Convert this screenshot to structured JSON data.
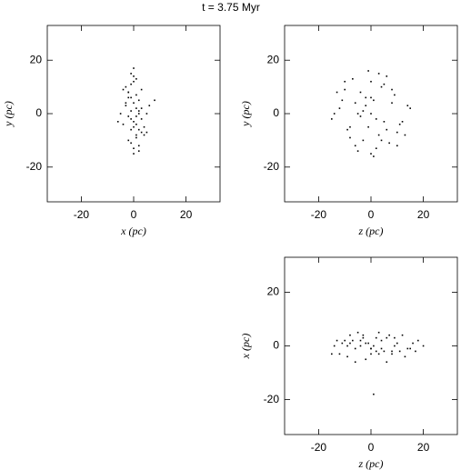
{
  "title": "t = 3.75 Myr",
  "chart_data": [
    {
      "type": "scatter",
      "xlabel": "x  (pc)",
      "ylabel": "y  (pc)",
      "color": "#000000",
      "xlim": [
        -33,
        33
      ],
      "ylim": [
        -33,
        33
      ],
      "xticks": [
        -20,
        0,
        20
      ],
      "yticks": [
        -20,
        0,
        20
      ],
      "x": [
        -3,
        -2,
        -1,
        0,
        1,
        2,
        3,
        -4,
        -1,
        1,
        0,
        2,
        -2,
        4,
        5,
        -3,
        -1,
        0,
        1,
        3,
        -2,
        0,
        2,
        -1,
        1,
        -5,
        6,
        0,
        -2,
        2,
        3,
        -1,
        1,
        0,
        -3,
        4,
        -2,
        2,
        1,
        -1,
        0,
        8,
        -6,
        3,
        -4,
        1,
        0,
        2,
        -1,
        5
      ],
      "y": [
        10,
        8,
        6,
        4,
        2,
        0,
        -2,
        -4,
        -6,
        -8,
        12,
        5,
        -1,
        -5,
        -7,
        3,
        1,
        -3,
        7,
        9,
        -10,
        14,
        -12,
        11,
        -9,
        0,
        3,
        -15,
        6,
        -6,
        2,
        -2,
        -4,
        17,
        4,
        -8,
        8,
        1,
        -1,
        -11,
        -13,
        5,
        -3,
        -7,
        9,
        13,
        -5,
        -14,
        15,
        0
      ]
    },
    {
      "type": "scatter",
      "xlabel": "z  (pc)",
      "ylabel": "y  (pc)",
      "color": "#000000",
      "xlim": [
        -33,
        33
      ],
      "ylim": [
        -33,
        33
      ],
      "xticks": [
        -20,
        0,
        20
      ],
      "yticks": [
        -20,
        0,
        20
      ],
      "x": [
        -12,
        -8,
        -4,
        0,
        4,
        8,
        12,
        -10,
        -6,
        -2,
        2,
        6,
        10,
        -14,
        14,
        -5,
        5,
        -9,
        9,
        0,
        -3,
        3,
        -7,
        7,
        -11,
        11,
        0,
        -1,
        1,
        -4,
        4,
        -15,
        15,
        -6,
        6,
        -8,
        8,
        -2,
        2,
        0,
        -13,
        13,
        -5,
        5,
        -10,
        10,
        -3,
        3,
        -1,
        1
      ],
      "y": [
        2,
        -5,
        8,
        12,
        -10,
        4,
        -3,
        9,
        -12,
        6,
        -2,
        14,
        -7,
        0,
        3,
        -14,
        11,
        -6,
        7,
        -15,
        1,
        -8,
        13,
        -11,
        5,
        -4,
        0,
        16,
        -16,
        -1,
        10,
        -2,
        2,
        4,
        -6,
        -9,
        9,
        3,
        -13,
        6,
        8,
        -8,
        0,
        -3,
        12,
        -12,
        -10,
        15,
        -5,
        5
      ]
    },
    {
      "type": "scatter",
      "xlabel": "z  (pc)",
      "ylabel": "x  (pc)",
      "color": "#000000",
      "xlim": [
        -33,
        33
      ],
      "ylim": [
        -33,
        33
      ],
      "xticks": [
        -20,
        0,
        20
      ],
      "yticks": [
        -20,
        0,
        20
      ],
      "x": [
        -14,
        -10,
        -6,
        -2,
        2,
        6,
        10,
        14,
        18,
        -12,
        -8,
        -4,
        0,
        4,
        8,
        12,
        16,
        -9,
        -3,
        3,
        9,
        -5,
        5,
        1,
        -1,
        0,
        2,
        -2,
        7,
        11,
        -7,
        13,
        -11,
        20,
        -15,
        15,
        -13,
        17,
        6,
        -6,
        0,
        3,
        -3,
        9,
        -9,
        4,
        -4,
        8,
        -8,
        1
      ],
      "y": [
        0,
        2,
        -1,
        1,
        -2,
        3,
        1,
        -1,
        2,
        -3,
        4,
        0,
        -1,
        2,
        -2,
        4,
        1,
        -4,
        3,
        -3,
        0,
        5,
        -2,
        0,
        1,
        -1,
        3,
        -5,
        4,
        -2,
        2,
        -4,
        1,
        0,
        -3,
        -1,
        2,
        -2,
        -6,
        -6,
        -3,
        5,
        4,
        3,
        0,
        -1,
        2,
        -3,
        1,
        -18
      ]
    }
  ]
}
